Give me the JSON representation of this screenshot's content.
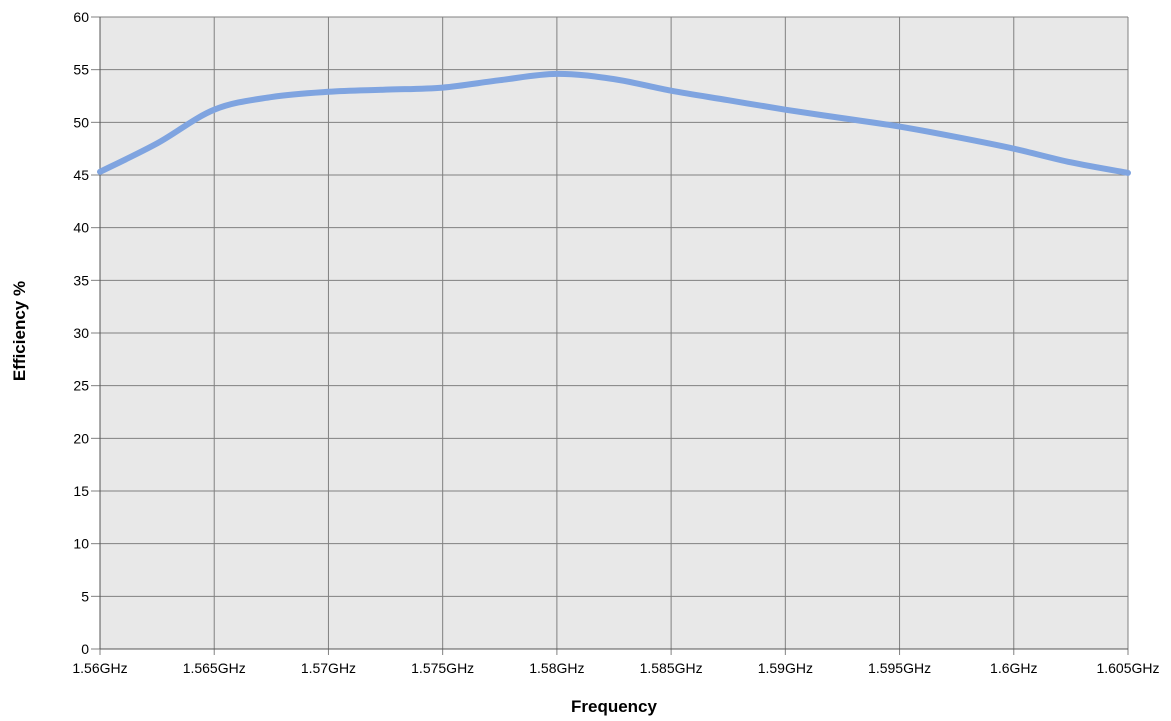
{
  "chart_data": {
    "type": "line",
    "title": "",
    "xlabel": "Frequency",
    "ylabel": "Efficiency %",
    "x_unit": "GHz",
    "xlim": [
      1.56,
      1.605
    ],
    "ylim": [
      0,
      60
    ],
    "x_ticks": [
      1.56,
      1.565,
      1.57,
      1.575,
      1.58,
      1.585,
      1.59,
      1.595,
      1.6,
      1.605
    ],
    "x_tick_labels": [
      "1.56GHz",
      "1.565GHz",
      "1.57GHz",
      "1.575GHz",
      "1.58GHz",
      "1.585GHz",
      "1.59GHz",
      "1.595GHz",
      "1.6GHz",
      "1.605GHz"
    ],
    "y_ticks": [
      0,
      5,
      10,
      15,
      20,
      25,
      30,
      35,
      40,
      45,
      50,
      55,
      60
    ],
    "grid": true,
    "plot_background": "#e8e8e8",
    "grid_color": "#808080",
    "series": [
      {
        "color": "#7fa4e0",
        "x": [
          1.56,
          1.5625,
          1.565,
          1.5675,
          1.57,
          1.5725,
          1.575,
          1.5775,
          1.58,
          1.5825,
          1.585,
          1.5875,
          1.59,
          1.5925,
          1.595,
          1.5975,
          1.6,
          1.6025,
          1.605
        ],
        "y": [
          45.3,
          48.0,
          51.2,
          52.4,
          52.9,
          53.1,
          53.3,
          54.0,
          54.6,
          54.1,
          53.0,
          52.1,
          51.2,
          50.4,
          49.6,
          48.6,
          47.5,
          46.2,
          45.2
        ]
      }
    ]
  }
}
